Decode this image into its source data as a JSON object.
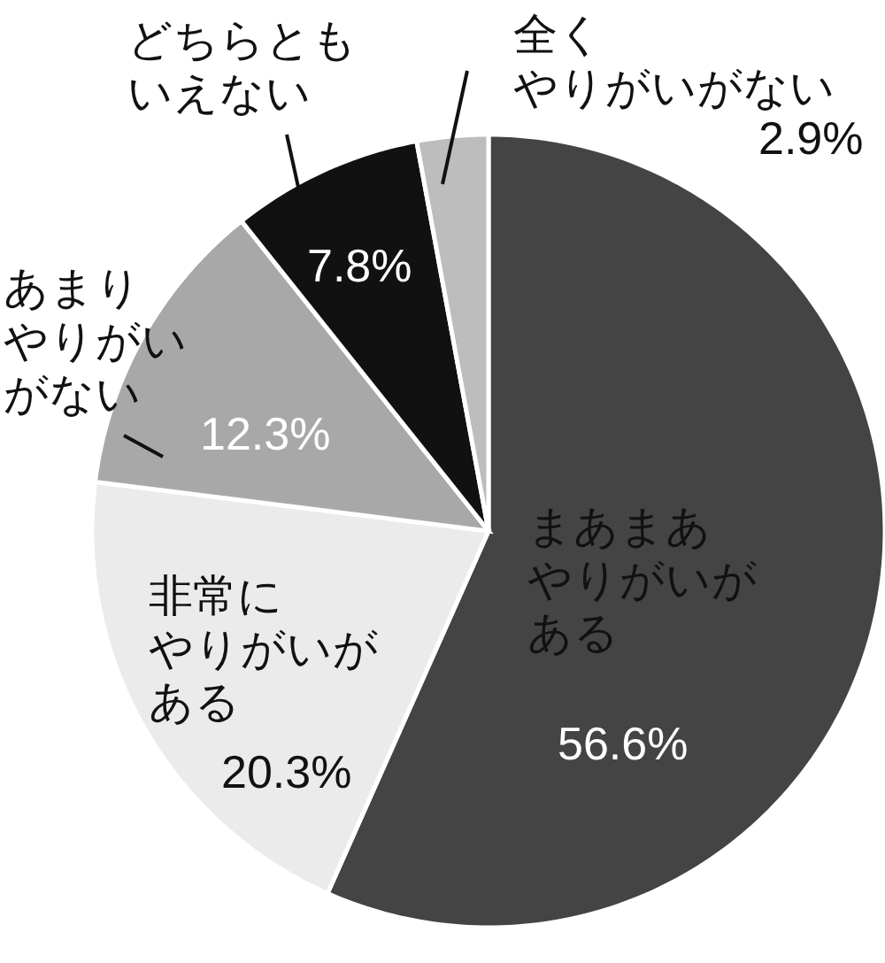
{
  "chart_data": {
    "type": "pie",
    "categories": [
      "まあまあやりがいがある",
      "非常にやりがいがある",
      "あまりやりがいがない",
      "どちらともいえない",
      "全くやりがいがない"
    ],
    "values": [
      56.6,
      20.3,
      12.3,
      7.8,
      2.9
    ],
    "value_labels": [
      "56.6%",
      "20.3%",
      "12.3%",
      "7.8%",
      "2.9%"
    ],
    "colors": [
      "#444444",
      "#ebebeb",
      "#a8a8a8",
      "#111111",
      "#bdbdbd"
    ]
  }
}
